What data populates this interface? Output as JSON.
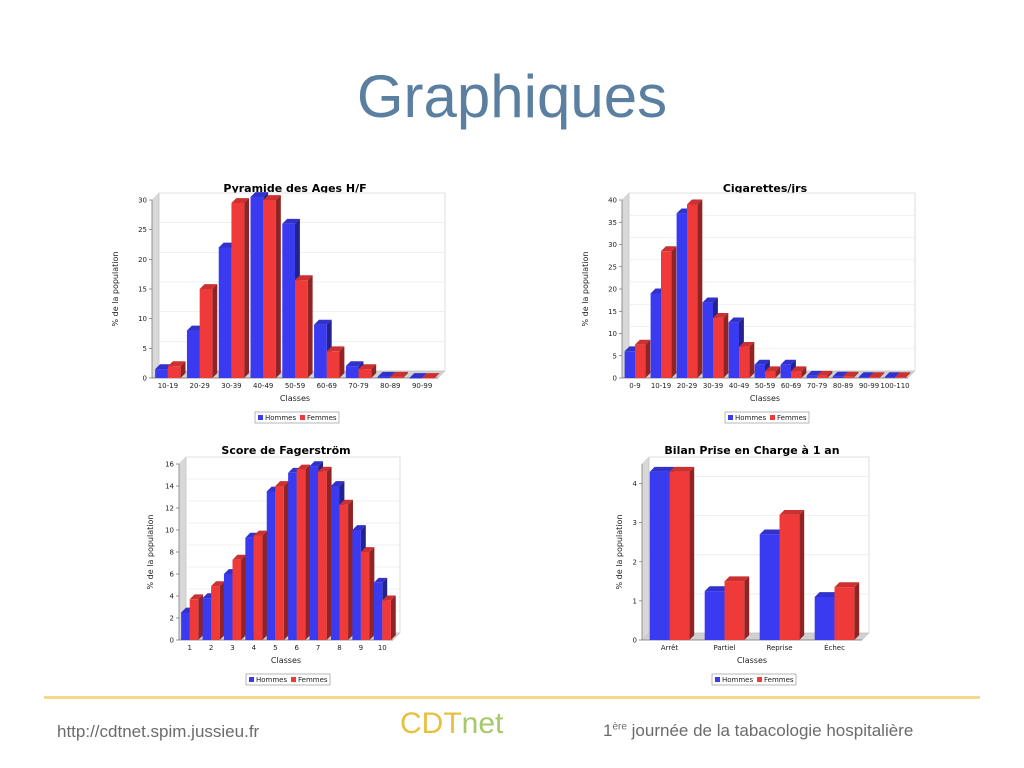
{
  "page": {
    "title": "Graphiques",
    "footer": {
      "url": "http://cdtnet.spim.jussieu.fr",
      "brand_part1": "CDT",
      "brand_part2": "net",
      "event_num": "1",
      "event_sup": "ère",
      "event_rest": " journée de la tabacologie hospitalière"
    }
  },
  "colors": {
    "hommes": "#3a3af0",
    "femmes": "#f03a3a",
    "title": "#5a7fa0",
    "brand_cdt": "#e8c040",
    "brand_net": "#a6c86a"
  },
  "chart_data": [
    {
      "type": "bar",
      "title": "Pyramide des Ages H/F",
      "xlabel": "Classes",
      "ylabel": "% de la population",
      "categories": [
        "10-19",
        "20-29",
        "30-39",
        "40-49",
        "50-59",
        "60-69",
        "70-79",
        "80-89",
        "90-99"
      ],
      "series": [
        {
          "name": "Hommes",
          "values": [
            1.5,
            8,
            22,
            30.5,
            26,
            9,
            2,
            0.2,
            0
          ]
        },
        {
          "name": "Femmes",
          "values": [
            2,
            15,
            29.5,
            30,
            16.5,
            4.5,
            1.5,
            0.2,
            0
          ]
        }
      ],
      "ylim": [
        0,
        30
      ],
      "yticks": [
        0,
        5,
        10,
        15,
        20,
        25,
        30
      ],
      "legend": "bottom-center"
    },
    {
      "type": "bar",
      "title": "Cigarettes/jrs",
      "xlabel": "Classes",
      "ylabel": "% de la population",
      "categories": [
        "0-9",
        "10-19",
        "20-29",
        "30-39",
        "40-49",
        "50-59",
        "60-69",
        "70-79",
        "80-89",
        "90-99",
        "100-110"
      ],
      "series": [
        {
          "name": "Hommes",
          "values": [
            6,
            19,
            37,
            17,
            12.5,
            3,
            3,
            0.5,
            0.3,
            0.2,
            0.2
          ]
        },
        {
          "name": "Femmes",
          "values": [
            7.5,
            28.5,
            39,
            13.5,
            7,
            1.5,
            1.5,
            0.5,
            0.3,
            0.2,
            0.2
          ]
        }
      ],
      "ylim": [
        0,
        40
      ],
      "yticks": [
        0,
        5,
        10,
        15,
        20,
        25,
        30,
        35,
        40
      ],
      "legend": "bottom-center"
    },
    {
      "type": "bar",
      "title": "Score de Fagerström",
      "xlabel": "Classes",
      "ylabel": "% de la population",
      "categories": [
        "1",
        "2",
        "3",
        "4",
        "5",
        "6",
        "7",
        "8",
        "9",
        "10"
      ],
      "series": [
        {
          "name": "Hommes",
          "values": [
            2.5,
            3.8,
            6,
            9.3,
            13.5,
            15.2,
            15.8,
            14,
            10,
            5.2
          ]
        },
        {
          "name": "Femmes",
          "values": [
            3.7,
            4.9,
            7.3,
            9.5,
            14,
            15.5,
            15.3,
            12.3,
            8,
            3.6
          ]
        }
      ],
      "ylim": [
        0,
        16
      ],
      "yticks": [
        0,
        2,
        4,
        6,
        8,
        10,
        12,
        14,
        16
      ],
      "legend": "bottom-center"
    },
    {
      "type": "bar",
      "title": "Bilan Prise en Charge à 1 an",
      "xlabel": "Classes",
      "ylabel": "% de la population",
      "categories": [
        "Arrêt",
        "Partiel",
        "Reprise",
        "Échec"
      ],
      "series": [
        {
          "name": "Hommes",
          "values": [
            4.3,
            1.25,
            2.7,
            1.1
          ]
        },
        {
          "name": "Femmes",
          "values": [
            4.3,
            1.5,
            3.2,
            1.35
          ]
        }
      ],
      "ylim": [
        0,
        4.5
      ],
      "yticks": [
        0,
        1,
        2,
        3,
        4
      ],
      "legend": "bottom-center"
    }
  ]
}
